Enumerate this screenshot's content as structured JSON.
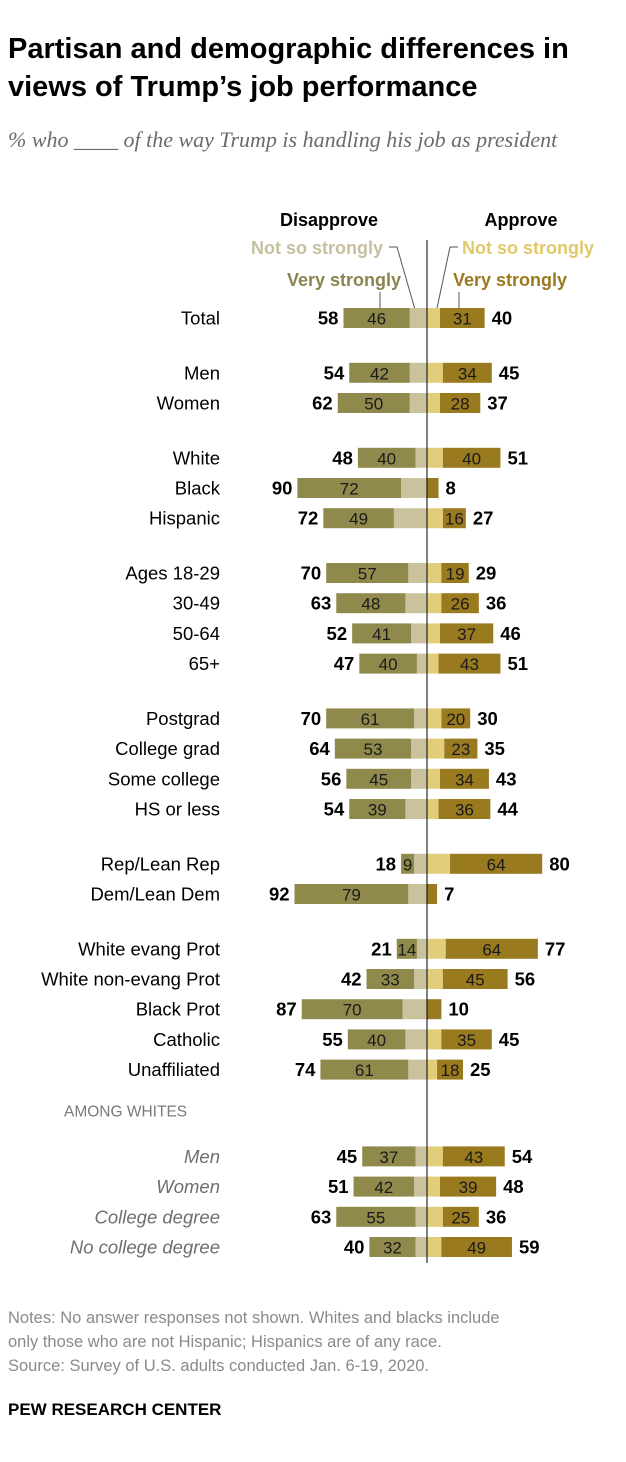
{
  "title": "Partisan and demographic differences in views of Trump’s job performance",
  "subtitle": "% who ____ of the way Trump is handling his job as president",
  "colors": {
    "disapprove_very": "#8f8a4c",
    "disapprove_not_so": "#c9c29c",
    "approve_very": "#9a7a1f",
    "approve_not_so": "#e2ce7a",
    "label_not_so_disapprove": "#c6c0a0",
    "label_very_disapprove": "#8a8550",
    "label_not_so_approve": "#e0c96a",
    "label_very_approve": "#9a7a1f",
    "section_text": "#7a7a7a"
  },
  "chart_data": {
    "type": "bar",
    "orientation": "horizontal-diverging",
    "legend": {
      "disapprove_header": "Disapprove",
      "approve_header": "Approve",
      "disapprove_not_so": "Not so strongly",
      "disapprove_very": "Very strongly",
      "approve_not_so": "Not so strongly",
      "approve_very": "Very strongly"
    },
    "groups": [
      {
        "header": null,
        "rows": [
          {
            "label": "Total",
            "italic": false,
            "disapprove": 58,
            "disapprove_very": 46,
            "approve": 40,
            "approve_very": 31
          }
        ]
      },
      {
        "header": null,
        "rows": [
          {
            "label": "Men",
            "italic": false,
            "disapprove": 54,
            "disapprove_very": 42,
            "approve": 45,
            "approve_very": 34
          },
          {
            "label": "Women",
            "italic": false,
            "disapprove": 62,
            "disapprove_very": 50,
            "approve": 37,
            "approve_very": 28
          }
        ]
      },
      {
        "header": null,
        "rows": [
          {
            "label": "White",
            "italic": false,
            "disapprove": 48,
            "disapprove_very": 40,
            "approve": 51,
            "approve_very": 40
          },
          {
            "label": "Black",
            "italic": false,
            "disapprove": 90,
            "disapprove_very": 72,
            "approve": 8,
            "approve_very": null
          },
          {
            "label": "Hispanic",
            "italic": false,
            "disapprove": 72,
            "disapprove_very": 49,
            "approve": 27,
            "approve_very": 16
          }
        ]
      },
      {
        "header": null,
        "rows": [
          {
            "label": "Ages 18-29",
            "italic": false,
            "disapprove": 70,
            "disapprove_very": 57,
            "approve": 29,
            "approve_very": 19
          },
          {
            "label": "30-49",
            "italic": false,
            "disapprove": 63,
            "disapprove_very": 48,
            "approve": 36,
            "approve_very": 26
          },
          {
            "label": "50-64",
            "italic": false,
            "disapprove": 52,
            "disapprove_very": 41,
            "approve": 46,
            "approve_very": 37
          },
          {
            "label": "65+",
            "italic": false,
            "disapprove": 47,
            "disapprove_very": 40,
            "approve": 51,
            "approve_very": 43
          }
        ]
      },
      {
        "header": null,
        "rows": [
          {
            "label": "Postgrad",
            "italic": false,
            "disapprove": 70,
            "disapprove_very": 61,
            "approve": 30,
            "approve_very": 20
          },
          {
            "label": "College grad",
            "italic": false,
            "disapprove": 64,
            "disapprove_very": 53,
            "approve": 35,
            "approve_very": 23
          },
          {
            "label": "Some college",
            "italic": false,
            "disapprove": 56,
            "disapprove_very": 45,
            "approve": 43,
            "approve_very": 34
          },
          {
            "label": "HS or less",
            "italic": false,
            "disapprove": 54,
            "disapprove_very": 39,
            "approve": 44,
            "approve_very": 36
          }
        ]
      },
      {
        "header": null,
        "rows": [
          {
            "label": "Rep/Lean Rep",
            "italic": false,
            "disapprove": 18,
            "disapprove_very": 9,
            "approve": 80,
            "approve_very": 64
          },
          {
            "label": "Dem/Lean Dem",
            "italic": false,
            "disapprove": 92,
            "disapprove_very": 79,
            "approve": 7,
            "approve_very": null
          }
        ]
      },
      {
        "header": null,
        "rows": [
          {
            "label": "White evang Prot",
            "italic": false,
            "disapprove": 21,
            "disapprove_very": 14,
            "approve": 77,
            "approve_very": 64
          },
          {
            "label": "White non-evang Prot",
            "italic": false,
            "disapprove": 42,
            "disapprove_very": 33,
            "approve": 56,
            "approve_very": 45
          },
          {
            "label": "Black Prot",
            "italic": false,
            "disapprove": 87,
            "disapprove_very": 70,
            "approve": 10,
            "approve_very": null
          },
          {
            "label": "Catholic",
            "italic": false,
            "disapprove": 55,
            "disapprove_very": 40,
            "approve": 45,
            "approve_very": 35
          },
          {
            "label": "Unaffiliated",
            "italic": false,
            "disapprove": 74,
            "disapprove_very": 61,
            "approve": 25,
            "approve_very": 18
          }
        ]
      },
      {
        "header": "AMONG WHITES",
        "rows": [
          {
            "label": "Men",
            "italic": true,
            "disapprove": 45,
            "disapprove_very": 37,
            "approve": 54,
            "approve_very": 43
          },
          {
            "label": "Women",
            "italic": true,
            "disapprove": 51,
            "disapprove_very": 42,
            "approve": 48,
            "approve_very": 39
          },
          {
            "label": "College degree",
            "italic": true,
            "disapprove": 63,
            "disapprove_very": 55,
            "approve": 36,
            "approve_very": 25
          },
          {
            "label": "No college degree",
            "italic": true,
            "disapprove": 40,
            "disapprove_very": 32,
            "approve": 59,
            "approve_very": 49
          }
        ]
      }
    ]
  },
  "notes": [
    "Notes: No answer responses not shown. Whites and blacks include",
    "only those who are not Hispanic; Hispanics are of any race.",
    "Source: Survey of U.S. adults conducted Jan. 6-19, 2020."
  ],
  "source_org": "PEW RESEARCH CENTER"
}
